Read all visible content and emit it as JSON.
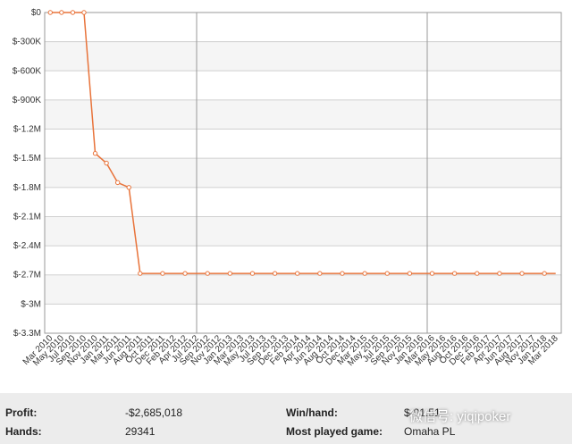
{
  "chart_data": {
    "type": "line",
    "categories": [
      "Mar 2010",
      "May 2010",
      "Jul 2010",
      "Sep 2010",
      "Nov 2010",
      "Jan 2011",
      "Mar 2011",
      "Jun 2011",
      "Aug 2011",
      "Oct 2011",
      "Dec 2011",
      "Feb 2012",
      "Apr 2012",
      "Jul 2012",
      "Sep 2012",
      "Nov 2012",
      "Jan 2013",
      "Mar 2013",
      "May 2013",
      "Jul 2013",
      "Sep 2013",
      "Dec 2013",
      "Feb 2014",
      "Apr 2014",
      "Jun 2014",
      "Aug 2014",
      "Oct 2014",
      "Dec 2014",
      "Mar 2015",
      "May 2015",
      "Jul 2015",
      "Sep 2015",
      "Nov 2015",
      "Jan 2016",
      "Mar 2016",
      "May 2016",
      "Aug 2016",
      "Oct 2016",
      "Dec 2016",
      "Feb 2017",
      "Apr 2017",
      "Jun 2017",
      "Aug 2017",
      "Nov 2017",
      "Jan 2018",
      "Mar 2018"
    ],
    "series": [
      {
        "name": "Profit",
        "color": "#e8733a",
        "values": [
          0,
          0,
          0,
          0,
          -1450000,
          -1550000,
          -1750000,
          -1800000,
          -2685018,
          -2685018,
          -2685018,
          -2685018,
          -2685018,
          -2685018,
          -2685018,
          -2685018,
          -2685018,
          -2685018,
          -2685018,
          -2685018,
          -2685018,
          -2685018,
          -2685018,
          -2685018,
          -2685018,
          -2685018,
          -2685018,
          -2685018,
          -2685018,
          -2685018,
          -2685018,
          -2685018,
          -2685018,
          -2685018,
          -2685018,
          -2685018,
          -2685018,
          -2685018,
          -2685018,
          -2685018,
          -2685018,
          -2685018,
          -2685018,
          -2685018,
          -2685018,
          -2685018
        ]
      }
    ],
    "ylim": [
      -3300000,
      0
    ],
    "yticks": [
      {
        "value": 0,
        "label": "$0"
      },
      {
        "value": -300000,
        "label": "$-300K"
      },
      {
        "value": -600000,
        "label": "$-600K"
      },
      {
        "value": -900000,
        "label": "$-900K"
      },
      {
        "value": -1200000,
        "label": "$-1.2M"
      },
      {
        "value": -1500000,
        "label": "$-1.5M"
      },
      {
        "value": -1800000,
        "label": "$-1.8M"
      },
      {
        "value": -2100000,
        "label": "$-2.1M"
      },
      {
        "value": -2400000,
        "label": "$-2.4M"
      },
      {
        "value": -2700000,
        "label": "$-2.7M"
      },
      {
        "value": -3000000,
        "label": "$-3M"
      },
      {
        "value": -3300000,
        "label": "$-3.3M"
      }
    ],
    "grid": true
  },
  "stats": {
    "profit_label": "Profit:",
    "profit": "-$2,685,018",
    "hands_label": "Hands:",
    "hands": "29341",
    "winhand_label": "Win/hand:",
    "winhand": "$-91.51",
    "game_label": "Most played game:",
    "game": "Omaha PL",
    "watermark": "微信号: yiqipoker"
  }
}
